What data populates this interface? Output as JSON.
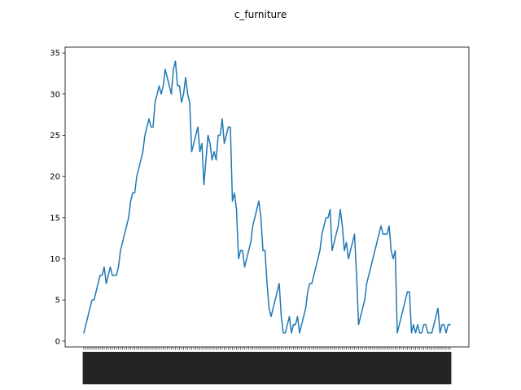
{
  "chart_data": {
    "type": "line",
    "title": "c_furniture",
    "xlabel": "",
    "ylabel": "",
    "ylim": [
      -0.7,
      35.7
    ],
    "yticks": [
      0,
      5,
      10,
      15,
      20,
      25,
      30,
      35
    ],
    "grid": false,
    "line_color": "#1f77b4",
    "x_tick_labels_note": "x tick labels are an illegible dense block of rotated text",
    "values": [
      1,
      2,
      3,
      4,
      5,
      5,
      6,
      7,
      8,
      8,
      9,
      7,
      8,
      9,
      8,
      8,
      8,
      9,
      11,
      12,
      13,
      14,
      15,
      17,
      18,
      18,
      20,
      21,
      22,
      23,
      25,
      26,
      27,
      26,
      26,
      29,
      30,
      31,
      30,
      31,
      33,
      32,
      31,
      30,
      33,
      34,
      31,
      31,
      29,
      30,
      32,
      30,
      29,
      23,
      24,
      25,
      26,
      23,
      24,
      19,
      22,
      25,
      24,
      22,
      23,
      22,
      25,
      25,
      27,
      24,
      25,
      26,
      26,
      17,
      18,
      16,
      10,
      11,
      11,
      9,
      10,
      11,
      12,
      14,
      15,
      16,
      17,
      15,
      11,
      11,
      7,
      4,
      3,
      4,
      5,
      6,
      7,
      3,
      1,
      1,
      2,
      3,
      1,
      2,
      2,
      3,
      1,
      2,
      3,
      4,
      6,
      7,
      7,
      8,
      9,
      10,
      11,
      13,
      14,
      15,
      15,
      16,
      11,
      12,
      13,
      14,
      16,
      14,
      11,
      12,
      10,
      11,
      12,
      13,
      8,
      2,
      3,
      4,
      5,
      7,
      8,
      9,
      10,
      11,
      12,
      13,
      14,
      13,
      13,
      13,
      14,
      11,
      10,
      11,
      1,
      2,
      3,
      4,
      5,
      6,
      6,
      1,
      2,
      1,
      2,
      1,
      1,
      2,
      2,
      1,
      1,
      1,
      2,
      3,
      4,
      1,
      2,
      2,
      1,
      2,
      2
    ]
  }
}
